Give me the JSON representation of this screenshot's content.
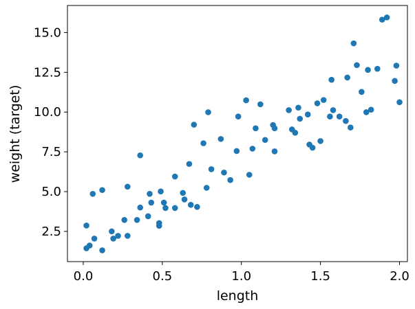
{
  "chart_data": {
    "type": "scatter",
    "title": "",
    "xlabel": "length",
    "ylabel": "weight (target)",
    "xlim": [
      -0.1,
      2.05
    ],
    "ylim": [
      0.6,
      16.7
    ],
    "xticks": [
      0.0,
      0.5,
      1.0,
      1.5,
      2.0
    ],
    "xtick_labels": [
      "0.0",
      "0.5",
      "1.0",
      "1.5",
      "2.0"
    ],
    "yticks": [
      2.5,
      5.0,
      7.5,
      10.0,
      12.5,
      15.0
    ],
    "ytick_labels": [
      "2.5",
      "5.0",
      "7.5",
      "10.0",
      "12.5",
      "15.0"
    ],
    "grid": false,
    "legend": "none",
    "marker_color": "#1f77b4",
    "series": [
      {
        "points": [
          [
            0.02,
            2.87
          ],
          [
            0.02,
            1.44
          ],
          [
            0.04,
            1.61
          ],
          [
            0.06,
            4.86
          ],
          [
            0.07,
            2.05
          ],
          [
            0.12,
            5.1
          ],
          [
            0.12,
            1.31
          ],
          [
            0.18,
            2.5
          ],
          [
            0.19,
            2.05
          ],
          [
            0.22,
            2.22
          ],
          [
            0.26,
            3.22
          ],
          [
            0.28,
            5.31
          ],
          [
            0.28,
            2.22
          ],
          [
            0.34,
            3.22
          ],
          [
            0.36,
            4.0
          ],
          [
            0.36,
            7.28
          ],
          [
            0.41,
            3.45
          ],
          [
            0.42,
            4.86
          ],
          [
            0.43,
            4.31
          ],
          [
            0.48,
            3.02
          ],
          [
            0.48,
            2.85
          ],
          [
            0.49,
            5.01
          ],
          [
            0.51,
            4.31
          ],
          [
            0.52,
            3.97
          ],
          [
            0.58,
            3.97
          ],
          [
            0.58,
            5.95
          ],
          [
            0.63,
            4.92
          ],
          [
            0.64,
            4.51
          ],
          [
            0.67,
            6.74
          ],
          [
            0.68,
            4.17
          ],
          [
            0.7,
            9.21
          ],
          [
            0.72,
            4.04
          ],
          [
            0.76,
            8.04
          ],
          [
            0.78,
            5.24
          ],
          [
            0.79,
            9.99
          ],
          [
            0.81,
            6.41
          ],
          [
            0.87,
            8.31
          ],
          [
            0.89,
            6.2
          ],
          [
            0.93,
            5.73
          ],
          [
            0.97,
            7.55
          ],
          [
            0.98,
            9.72
          ],
          [
            1.03,
            10.74
          ],
          [
            1.05,
            6.06
          ],
          [
            1.07,
            7.7
          ],
          [
            1.09,
            8.98
          ],
          [
            1.12,
            10.49
          ],
          [
            1.15,
            8.25
          ],
          [
            1.2,
            9.19
          ],
          [
            1.21,
            8.98
          ],
          [
            1.21,
            7.53
          ],
          [
            1.3,
            10.12
          ],
          [
            1.32,
            8.91
          ],
          [
            1.34,
            8.7
          ],
          [
            1.36,
            10.28
          ],
          [
            1.37,
            9.58
          ],
          [
            1.42,
            9.85
          ],
          [
            1.43,
            7.96
          ],
          [
            1.45,
            7.76
          ],
          [
            1.48,
            10.55
          ],
          [
            1.5,
            8.18
          ],
          [
            1.52,
            10.76
          ],
          [
            1.56,
            9.72
          ],
          [
            1.57,
            12.03
          ],
          [
            1.58,
            10.12
          ],
          [
            1.62,
            9.72
          ],
          [
            1.66,
            9.44
          ],
          [
            1.67,
            12.17
          ],
          [
            1.69,
            9.03
          ],
          [
            1.71,
            14.32
          ],
          [
            1.73,
            12.95
          ],
          [
            1.76,
            11.27
          ],
          [
            1.79,
            9.99
          ],
          [
            1.8,
            12.65
          ],
          [
            1.82,
            10.15
          ],
          [
            1.86,
            12.72
          ],
          [
            1.89,
            15.81
          ],
          [
            1.92,
            15.95
          ],
          [
            1.97,
            11.96
          ],
          [
            1.98,
            12.92
          ],
          [
            2.0,
            10.62
          ]
        ]
      }
    ]
  }
}
